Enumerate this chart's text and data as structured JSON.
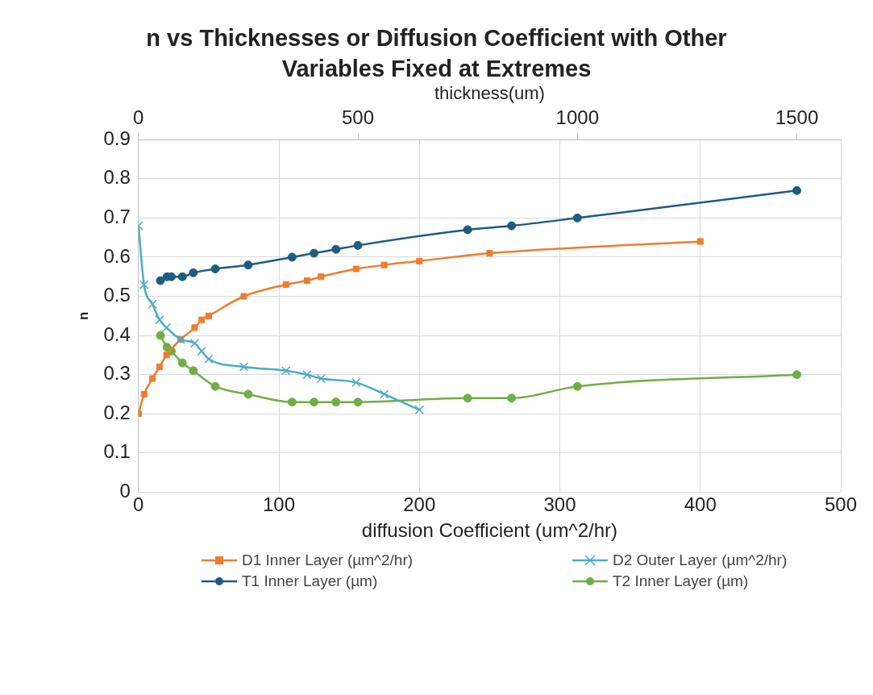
{
  "chart_data": {
    "type": "line",
    "title": "n vs Thicknesses or Diffusion Coefficient with Other Variables Fixed at Extremes",
    "xlabel": "diffusion Coefficient (um^2/hr)",
    "x2label": "thickness(um)",
    "ylabel": "n",
    "xlim": [
      0,
      500
    ],
    "xticks": [
      0,
      100,
      200,
      300,
      400,
      500
    ],
    "x2lim": [
      0,
      1600
    ],
    "x2ticks": [
      0,
      500,
      1000,
      1500
    ],
    "ylim": [
      0,
      0.9
    ],
    "yticks": [
      0,
      0.1,
      0.2,
      0.3,
      0.4,
      0.5,
      0.6,
      0.7,
      0.8,
      0.9
    ],
    "grid": true,
    "legend": "bottom",
    "series": [
      {
        "name": "D1 Inner Layer (µm^2/hr)",
        "color": "#ed7d31",
        "marker": "square",
        "x": [
          0,
          4,
          10,
          15,
          20,
          30,
          40,
          45,
          50,
          75,
          105,
          120,
          130,
          155,
          175,
          200,
          250,
          400
        ],
        "values": [
          0.2,
          0.25,
          0.29,
          0.32,
          0.35,
          0.39,
          0.42,
          0.44,
          0.45,
          0.5,
          0.53,
          0.54,
          0.55,
          0.57,
          0.58,
          0.59,
          0.61,
          0.64
        ]
      },
      {
        "name": "D2 Outer Layer (µm^2/hr)",
        "color": "#4bacc6",
        "marker": "cross",
        "x": [
          0,
          4,
          10,
          15,
          20,
          30,
          40,
          45,
          50,
          75,
          105,
          120,
          130,
          155,
          175,
          200
        ],
        "values": [
          0.68,
          0.53,
          0.48,
          0.44,
          0.42,
          0.39,
          0.38,
          0.36,
          0.34,
          0.32,
          0.31,
          0.3,
          0.29,
          0.28,
          0.25,
          0.21
        ]
      },
      {
        "name": "T1 Inner Layer (µm)",
        "color": "#1f5c7f",
        "marker": "circle",
        "axis": "x2",
        "x": [
          50,
          65,
          75,
          100,
          125,
          175,
          250,
          350,
          400,
          450,
          500,
          750,
          850,
          1000,
          1500
        ],
        "values": [
          0.54,
          0.55,
          0.55,
          0.55,
          0.56,
          0.57,
          0.58,
          0.6,
          0.61,
          0.62,
          0.63,
          0.67,
          0.68,
          0.7,
          0.77
        ]
      },
      {
        "name": "T2 Inner Layer (µm)",
        "color": "#70ad47",
        "marker": "circle",
        "axis": "x2",
        "x": [
          50,
          65,
          75,
          100,
          125,
          175,
          250,
          350,
          400,
          450,
          500,
          750,
          850,
          1000,
          1500
        ],
        "values": [
          0.4,
          0.37,
          0.36,
          0.33,
          0.31,
          0.27,
          0.25,
          0.23,
          0.23,
          0.23,
          0.23,
          0.24,
          0.24,
          0.27,
          0.3
        ]
      }
    ]
  }
}
